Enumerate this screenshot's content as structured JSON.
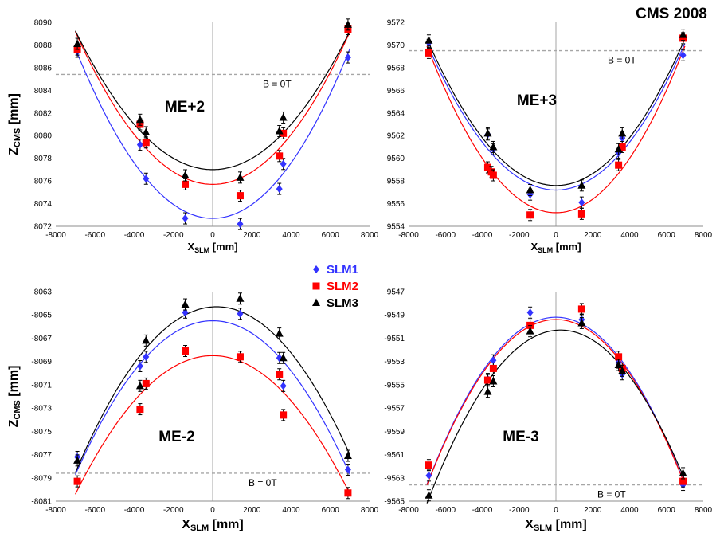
{
  "header": {
    "title": "CMS 2008"
  },
  "legend": [
    {
      "name": "SLM1",
      "color": "#3333ff",
      "marker": "diamond"
    },
    {
      "name": "SLM2",
      "color": "#ff0000",
      "marker": "square"
    },
    {
      "name": "SLM3",
      "color": "#000000",
      "marker": "triangle"
    }
  ],
  "chart_data": [
    {
      "type": "scatter",
      "panel_label": "ME+2",
      "reference_label": "B = 0T",
      "reference_y": 8085.4,
      "xlabel_main": "X",
      "xlabel_sub": "SLM",
      "xlabel_unit": " [mm]",
      "ylabel_main": "Z",
      "ylabel_sub": "CMS",
      "ylabel_unit": " [mm]",
      "xlim": [
        -8000,
        8000
      ],
      "ylim": [
        8072,
        8090
      ],
      "xticks": [
        "-8000",
        "-6000",
        "-4000",
        "-2000",
        "0",
        "2000",
        "4000",
        "6000",
        "8000"
      ],
      "yticks": [
        "8072",
        "8074",
        "8076",
        "8078",
        "8080",
        "8082",
        "8084",
        "8086",
        "8088",
        "8090"
      ],
      "series": [
        {
          "name": "SLM1",
          "color": "#3333ff",
          "marker": "diamond",
          "x": [
            -6900,
            -3700,
            -3400,
            -1400,
            1400,
            3400,
            3600,
            6900
          ],
          "y": [
            8087.4,
            8079.2,
            8076.2,
            8072.7,
            8072.2,
            8075.3,
            8077.5,
            8086.9
          ],
          "fit": {
            "c": 8072.7,
            "a": 3.06e-07,
            "x0": 0
          }
        },
        {
          "name": "SLM2",
          "color": "#ff0000",
          "marker": "square",
          "x": [
            -6900,
            -3700,
            -3400,
            -1400,
            1400,
            3400,
            3600,
            6900
          ],
          "y": [
            8087.6,
            8081.0,
            8079.4,
            8075.7,
            8074.7,
            8078.2,
            8080.2,
            8089.4
          ],
          "fit": {
            "c": 8075.7,
            "a": 2.75e-07,
            "x0": 0
          }
        },
        {
          "name": "SLM3",
          "color": "#000000",
          "marker": "triangle",
          "x": [
            -6900,
            -3700,
            -3400,
            -1400,
            1400,
            3400,
            3600,
            6900
          ],
          "y": [
            8088.1,
            8081.4,
            8080.3,
            8076.5,
            8076.3,
            8080.4,
            8081.6,
            8089.8
          ],
          "fit": {
            "c": 8077.0,
            "a": 2.5e-07,
            "x0": 0
          }
        }
      ]
    },
    {
      "type": "scatter",
      "panel_label": "ME+3",
      "reference_label": "B = 0T",
      "reference_y": 9569.5,
      "xlabel_main": "X",
      "xlabel_sub": "SLM",
      "xlabel_unit": " [mm]",
      "ylabel_main": "",
      "ylabel_sub": "",
      "ylabel_unit": "",
      "xlim": [
        -8000,
        8000
      ],
      "ylim": [
        9554,
        9572
      ],
      "xticks": [
        "-8000",
        "-6000",
        "-4000",
        "-2000",
        "0",
        "2000",
        "4000",
        "6000",
        "8000"
      ],
      "yticks": [
        "9554",
        "9556",
        "9558",
        "9560",
        "9562",
        "9564",
        "9566",
        "9568",
        "9570",
        "9572"
      ],
      "series": [
        {
          "name": "SLM1",
          "color": "#3333ff",
          "marker": "diamond",
          "x": [
            -6900,
            -3700,
            -3400,
            -1400,
            1400,
            3400,
            3600,
            6900
          ],
          "y": [
            9570.2,
            9562.1,
            9560.8,
            9556.8,
            9556.1,
            9560.5,
            9561.8,
            9569.1
          ],
          "fit": {
            "c": 9557.2,
            "a": 2.64e-07,
            "x0": 0
          }
        },
        {
          "name": "SLM2",
          "color": "#ff0000",
          "marker": "square",
          "x": [
            -6900,
            -3700,
            -3500,
            -3400,
            -1400,
            1400,
            3400,
            3600,
            6900
          ],
          "y": [
            9569.3,
            9559.2,
            9558.8,
            9558.5,
            9555.0,
            9555.1,
            9559.4,
            9561.0,
            9570.6
          ],
          "fit": {
            "c": 9555.2,
            "a": 3e-07,
            "x0": 0
          }
        },
        {
          "name": "SLM3",
          "color": "#000000",
          "marker": "triangle",
          "x": [
            -6900,
            -3700,
            -3400,
            -1400,
            1400,
            3400,
            3600,
            6900
          ],
          "y": [
            9570.4,
            9562.2,
            9561.0,
            9557.2,
            9557.6,
            9560.8,
            9562.2,
            9570.9
          ],
          "fit": {
            "c": 9557.6,
            "a": 2.64e-07,
            "x0": 0
          }
        }
      ]
    },
    {
      "type": "scatter",
      "panel_label": "ME-2",
      "reference_label": "B = 0T",
      "reference_y": -8078.6,
      "xlabel_main": "X",
      "xlabel_sub": "SLM",
      "xlabel_unit": " [mm]",
      "ylabel_main": "Z",
      "ylabel_sub": "CMS",
      "ylabel_unit": " [mm]",
      "xlim": [
        -8000,
        8000
      ],
      "ylim": [
        -8081,
        -8063
      ],
      "xticks": [
        "-8000",
        "-6000",
        "-4000",
        "-2000",
        "0",
        "2000",
        "4000",
        "6000",
        "8000"
      ],
      "yticks": [
        "-8081",
        "-8079",
        "-8077",
        "-8075",
        "-8073",
        "-8071",
        "-8069",
        "-8067",
        "-8065",
        "-8063"
      ],
      "series": [
        {
          "name": "SLM1",
          "color": "#3333ff",
          "marker": "diamond",
          "x": [
            -6900,
            -3700,
            -3400,
            -1400,
            1400,
            3400,
            3600,
            6900
          ],
          "y": [
            -8077.2,
            -8069.4,
            -8068.6,
            -8064.8,
            -8064.9,
            -8068.7,
            -8071.1,
            -8078.3
          ],
          "fit": {
            "c": -8065.5,
            "a": -2.7e-07,
            "x0": 0
          }
        },
        {
          "name": "SLM2",
          "color": "#ff0000",
          "marker": "square",
          "x": [
            -6900,
            -3700,
            -3400,
            -1400,
            1400,
            3400,
            3600,
            6900
          ],
          "y": [
            -8079.3,
            -8073.1,
            -8070.9,
            -8068.1,
            -8068.6,
            -8070.1,
            -8073.6,
            -8080.3
          ],
          "fit": {
            "c": -8068.5,
            "a": -2.43e-07,
            "x0": 0
          }
        },
        {
          "name": "SLM3",
          "color": "#000000",
          "marker": "triangle",
          "x": [
            -6900,
            -3700,
            -3400,
            -1400,
            1400,
            3400,
            3600,
            6900
          ],
          "y": [
            -8077.5,
            -8071.1,
            -8067.2,
            -8064.1,
            -8063.6,
            -8066.6,
            -8068.7,
            -8077.1
          ],
          "fit": {
            "c": -8064.3,
            "a": -2.75e-07,
            "x0": 200
          }
        }
      ]
    },
    {
      "type": "scatter",
      "panel_label": "ME-3",
      "reference_label": "B = 0T",
      "reference_y": -9563.6,
      "xlabel_main": "X",
      "xlabel_sub": "SLM",
      "xlabel_unit": " [mm]",
      "ylabel_main": "",
      "ylabel_sub": "",
      "ylabel_unit": "",
      "xlim": [
        -8000,
        8000
      ],
      "ylim": [
        -9565,
        -9547
      ],
      "xticks": [
        "-8000",
        "-6000",
        "-4000",
        "-2000",
        "0",
        "2000",
        "4000",
        "6000",
        "8000"
      ],
      "yticks": [
        "-9565",
        "-9563",
        "-9561",
        "-9559",
        "-9557",
        "-9555",
        "-9553",
        "-9551",
        "-9549",
        "-9547"
      ],
      "series": [
        {
          "name": "SLM1",
          "color": "#3333ff",
          "marker": "diamond",
          "x": [
            -6900,
            -3700,
            -3400,
            -1400,
            1400,
            3400,
            3600,
            6900
          ],
          "y": [
            -9562.8,
            -9554.5,
            -9552.9,
            -9548.8,
            -9549.4,
            -9553.1,
            -9554.1,
            -9563.6
          ],
          "fit": {
            "c": -9549.2,
            "a": -2.93e-07,
            "x0": 0
          }
        },
        {
          "name": "SLM2",
          "color": "#ff0000",
          "marker": "square",
          "x": [
            -6900,
            -3700,
            -3400,
            -1400,
            1400,
            3400,
            3600,
            6900
          ],
          "y": [
            -9561.9,
            -9554.6,
            -9553.6,
            -9549.9,
            -9548.5,
            -9552.6,
            -9553.6,
            -9563.3
          ],
          "fit": {
            "c": -9549.4,
            "a": -2.9e-07,
            "x0": 0
          }
        },
        {
          "name": "SLM3",
          "color": "#000000",
          "marker": "triangle",
          "x": [
            -6900,
            -3700,
            -3400,
            -1400,
            1400,
            3400,
            3600,
            6900
          ],
          "y": [
            -9564.5,
            -9555.6,
            -9554.7,
            -9550.4,
            -9549.7,
            -9553.3,
            -9553.8,
            -9562.6
          ],
          "fit": {
            "c": -9550.3,
            "a": -2.83e-07,
            "x0": 250
          }
        }
      ]
    }
  ]
}
